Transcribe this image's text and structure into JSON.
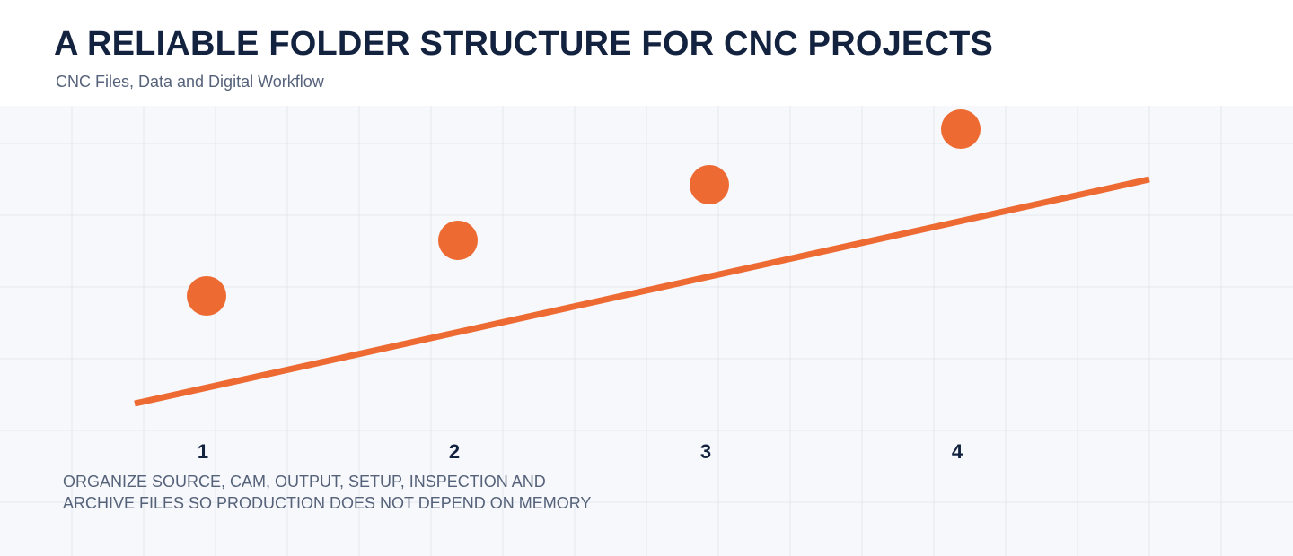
{
  "header": {
    "title": "A RELIABLE FOLDER STRUCTURE FOR CNC PROJECTS",
    "subtitle": "CNC Files, Data and Digital Workflow"
  },
  "steps": [
    "1",
    "2",
    "3",
    "4"
  ],
  "caption": [
    "ORGANIZE SOURCE, CAM, OUTPUT, SETUP, INSPECTION AND",
    "ARCHIVE FILES SO PRODUCTION DOES NOT DEPEND ON MEMORY"
  ]
}
